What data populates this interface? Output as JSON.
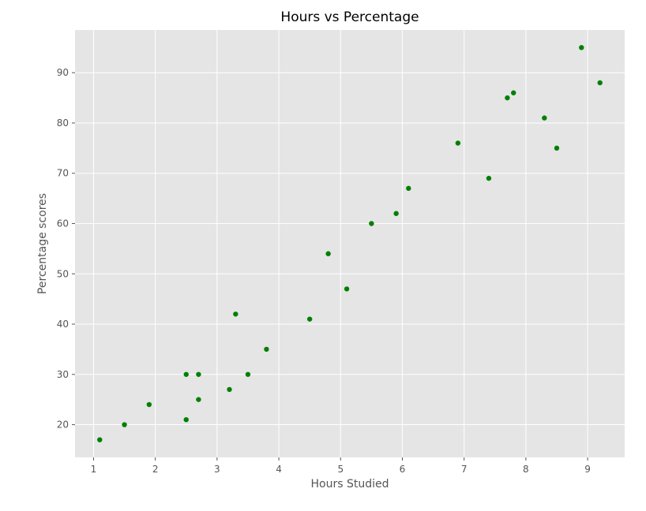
{
  "chart_data": {
    "type": "scatter",
    "title": "Hours vs Percentage",
    "xlabel": "Hours Studied",
    "ylabel": "Percentage scores",
    "xlim": [
      0.7,
      9.6
    ],
    "ylim": [
      13.5,
      98.5
    ],
    "xticks": [
      1,
      2,
      3,
      4,
      5,
      6,
      7,
      8,
      9
    ],
    "yticks": [
      20,
      30,
      40,
      50,
      60,
      70,
      80,
      90
    ],
    "grid": true,
    "colors": {
      "background": "#e5e5e5",
      "grid": "#ffffff",
      "marker": "#008000",
      "tick": "#555555"
    },
    "points": [
      {
        "x": 1.1,
        "y": 17
      },
      {
        "x": 1.5,
        "y": 20
      },
      {
        "x": 1.9,
        "y": 24
      },
      {
        "x": 2.5,
        "y": 21
      },
      {
        "x": 2.5,
        "y": 30
      },
      {
        "x": 2.7,
        "y": 25
      },
      {
        "x": 2.7,
        "y": 30
      },
      {
        "x": 3.2,
        "y": 27
      },
      {
        "x": 3.3,
        "y": 42
      },
      {
        "x": 3.5,
        "y": 30
      },
      {
        "x": 3.8,
        "y": 35
      },
      {
        "x": 4.5,
        "y": 41
      },
      {
        "x": 4.8,
        "y": 54
      },
      {
        "x": 5.1,
        "y": 47
      },
      {
        "x": 5.5,
        "y": 60
      },
      {
        "x": 5.9,
        "y": 62
      },
      {
        "x": 6.1,
        "y": 67
      },
      {
        "x": 6.9,
        "y": 76
      },
      {
        "x": 7.4,
        "y": 69
      },
      {
        "x": 7.7,
        "y": 85
      },
      {
        "x": 7.8,
        "y": 86
      },
      {
        "x": 8.3,
        "y": 81
      },
      {
        "x": 8.5,
        "y": 75
      },
      {
        "x": 8.9,
        "y": 95
      },
      {
        "x": 9.2,
        "y": 88
      }
    ]
  }
}
